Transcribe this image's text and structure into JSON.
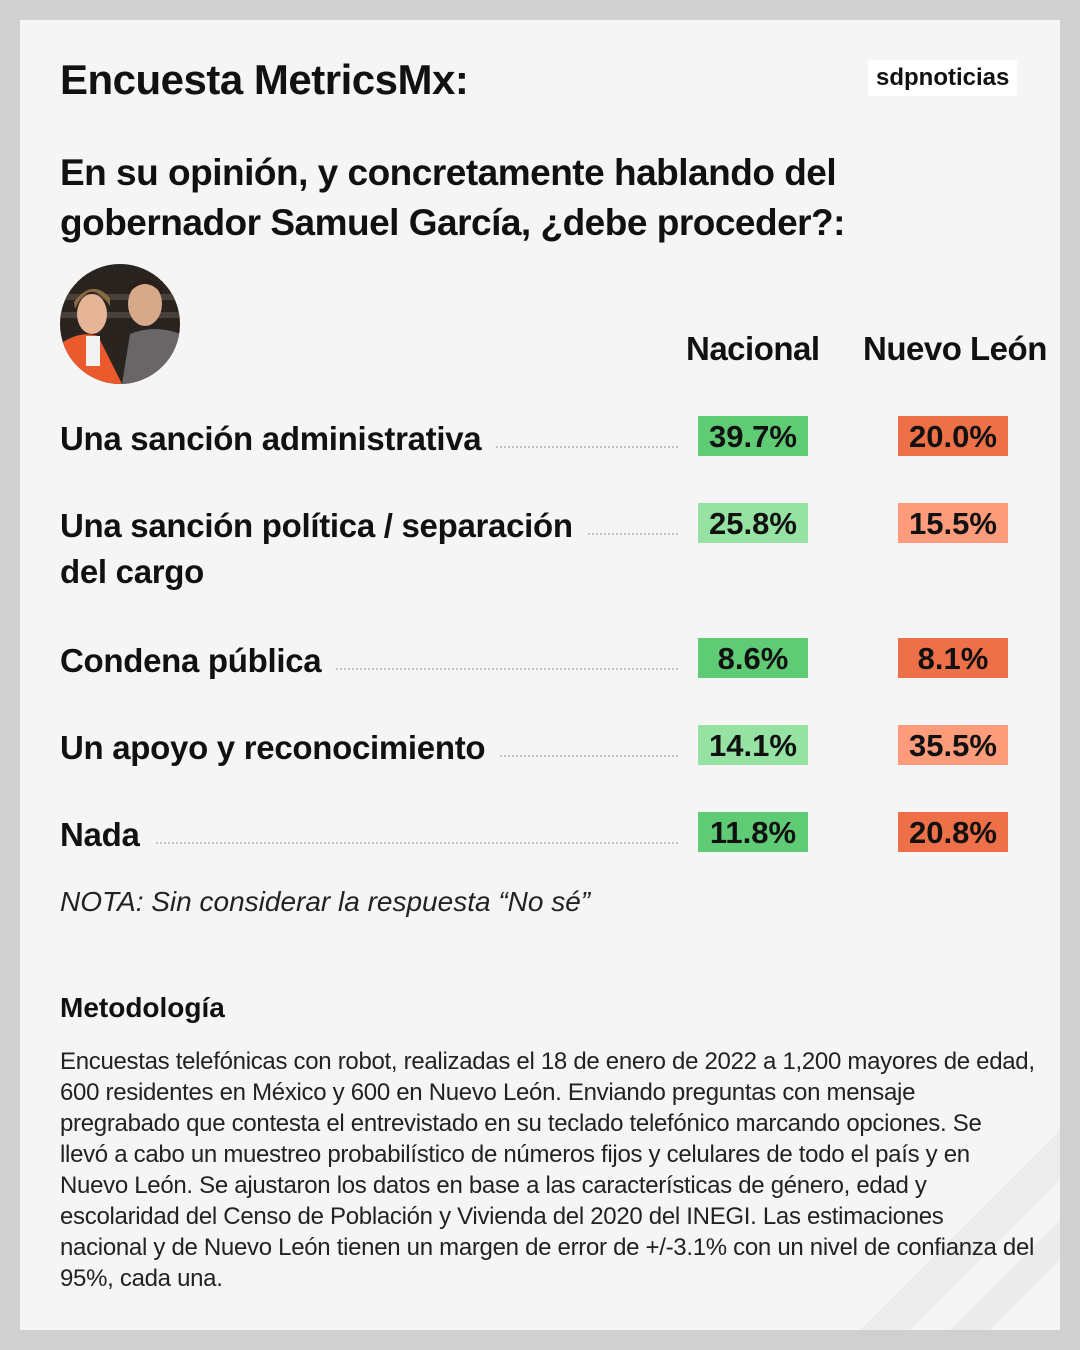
{
  "header": {
    "title": "Encuesta MetricsMx:",
    "logo": "sdpnoticias"
  },
  "question": "En su opinión, y concretamente hablando del gobernador Samuel García, ¿debe proceder?:",
  "columns": [
    "Nacional",
    "Nuevo León"
  ],
  "colors": {
    "green_strong": "#5fcb75",
    "green_light": "#95e2a2",
    "orange_strong": "#ee7048",
    "orange_light": "#fd9b7a"
  },
  "rows": [
    {
      "label": "Una sanción administrativa",
      "nacional": "39.7%",
      "nuevo_leon": "20.0%"
    },
    {
      "label": "Una sanción política / separación del cargo",
      "label_line1": "Una sanción política / separación",
      "label_line2": "del cargo",
      "nacional": "25.8%",
      "nuevo_leon": "15.5%"
    },
    {
      "label": "Condena pública",
      "nacional": "8.6%",
      "nuevo_leon": "8.1%"
    },
    {
      "label": "Un apoyo y reconocimiento",
      "nacional": "14.1%",
      "nuevo_leon": "35.5%"
    },
    {
      "label": "Nada",
      "nacional": "11.8%",
      "nuevo_leon": "20.8%"
    }
  ],
  "note": "NOTA: Sin considerar la respuesta “No sé”",
  "methodology": {
    "title": "Metodología",
    "text": "Encuestas telefónicas con robot, realizadas el 18 de enero de 2022 a 1,200 mayores de edad, 600 residentes en México y 600 en Nuevo León. Enviando preguntas con mensaje pregrabado que contesta el entrevistado en su teclado telefónico marcando opciones. Se llevó a cabo un muestreo probabilístico de números fijos y celulares de todo el país y en Nuevo León. Se ajustaron los datos en base a las características de género, edad y escolaridad del Censo de Población y Vivienda del 2020 del INEGI. Las estimaciones nacional y de Nuevo León tienen un margen de error de +/-3.1% con un nivel de confianza del 95%, cada una."
  }
}
